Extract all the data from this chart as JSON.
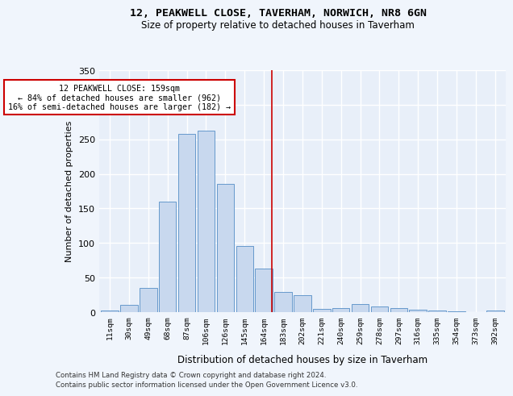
{
  "title1": "12, PEAKWELL CLOSE, TAVERHAM, NORWICH, NR8 6GN",
  "title2": "Size of property relative to detached houses in Taverham",
  "xlabel": "Distribution of detached houses by size in Taverham",
  "ylabel": "Number of detached properties",
  "bar_color": "#c8d8ee",
  "bar_edge_color": "#6699cc",
  "categories": [
    "11sqm",
    "30sqm",
    "49sqm",
    "68sqm",
    "87sqm",
    "106sqm",
    "126sqm",
    "145sqm",
    "164sqm",
    "183sqm",
    "202sqm",
    "221sqm",
    "240sqm",
    "259sqm",
    "278sqm",
    "297sqm",
    "316sqm",
    "335sqm",
    "354sqm",
    "373sqm",
    "392sqm"
  ],
  "values": [
    2,
    10,
    35,
    160,
    258,
    262,
    185,
    96,
    63,
    29,
    25,
    5,
    6,
    12,
    8,
    6,
    4,
    2,
    1,
    0,
    2
  ],
  "property_line_x": 8.43,
  "property_line_color": "#cc0000",
  "annotation_text": "12 PEAKWELL CLOSE: 159sqm\n← 84% of detached houses are smaller (962)\n16% of semi-detached houses are larger (182) →",
  "annotation_box_color": "#cc0000",
  "ylim": [
    0,
    350
  ],
  "yticks": [
    0,
    50,
    100,
    150,
    200,
    250,
    300,
    350
  ],
  "background_color": "#e8eff9",
  "grid_color": "#ffffff",
  "footer1": "Contains HM Land Registry data © Crown copyright and database right 2024.",
  "footer2": "Contains public sector information licensed under the Open Government Licence v3.0."
}
